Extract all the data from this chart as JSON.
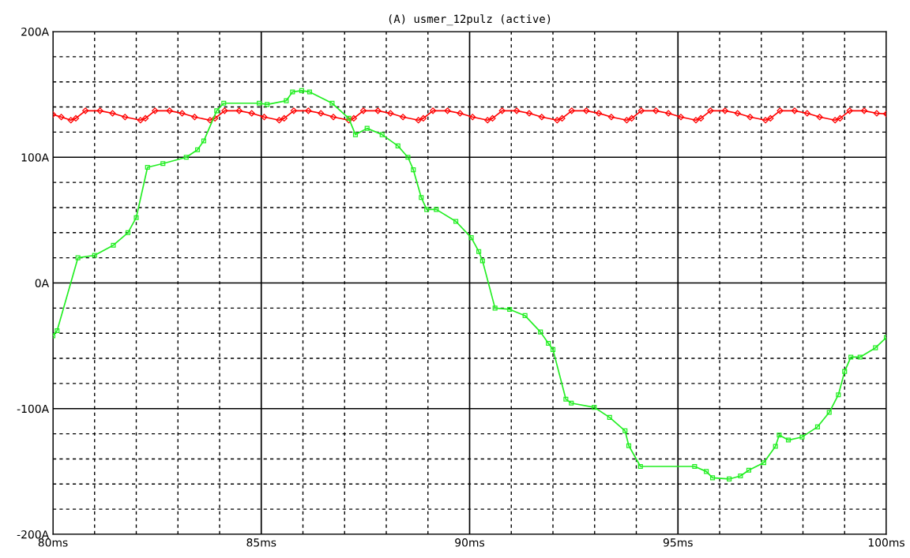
{
  "chart_data": {
    "type": "line",
    "title": "(A) usmer_12pulz (active)",
    "xlim": [
      80,
      100
    ],
    "xticks": [
      {
        "value": 80,
        "label": "80ms"
      },
      {
        "value": 81,
        "label": null
      },
      {
        "value": 82,
        "label": null
      },
      {
        "value": 83,
        "label": null
      },
      {
        "value": 84,
        "label": null
      },
      {
        "value": 85,
        "label": "85ms"
      },
      {
        "value": 86,
        "label": null
      },
      {
        "value": 87,
        "label": null
      },
      {
        "value": 88,
        "label": null
      },
      {
        "value": 89,
        "label": null
      },
      {
        "value": 90,
        "label": "90ms"
      },
      {
        "value": 91,
        "label": null
      },
      {
        "value": 92,
        "label": null
      },
      {
        "value": 93,
        "label": null
      },
      {
        "value": 94,
        "label": null
      },
      {
        "value": 95,
        "label": "95ms"
      },
      {
        "value": 96,
        "label": null
      },
      {
        "value": 97,
        "label": null
      },
      {
        "value": 98,
        "label": null
      },
      {
        "value": 99,
        "label": null
      },
      {
        "value": 100,
        "label": "100ms"
      }
    ],
    "ylim": [
      -200,
      200
    ],
    "yticks": [
      {
        "value": -200,
        "label": "-200A"
      },
      {
        "value": -180,
        "label": null
      },
      {
        "value": -160,
        "label": null
      },
      {
        "value": -140,
        "label": null
      },
      {
        "value": -120,
        "label": null
      },
      {
        "value": -100,
        "label": "-100A"
      },
      {
        "value": -80,
        "label": null
      },
      {
        "value": -60,
        "label": null
      },
      {
        "value": -40,
        "label": null
      },
      {
        "value": -20,
        "label": null
      },
      {
        "value": 0,
        "label": "0A"
      },
      {
        "value": 20,
        "label": null
      },
      {
        "value": 40,
        "label": null
      },
      {
        "value": 60,
        "label": null
      },
      {
        "value": 80,
        "label": null
      },
      {
        "value": 100,
        "label": "100A"
      },
      {
        "value": 120,
        "label": null
      },
      {
        "value": 140,
        "label": null
      },
      {
        "value": 160,
        "label": null
      },
      {
        "value": 180,
        "label": null
      },
      {
        "value": 200,
        "label": "200A"
      }
    ],
    "grid": true,
    "series": [
      {
        "color": "#ff0000",
        "marker": "diamond",
        "x": [
          80.0,
          80.2,
          80.43,
          80.55,
          80.78,
          81.13,
          81.43,
          81.73,
          82.1,
          82.22,
          82.45,
          82.8,
          83.1,
          83.4,
          83.77,
          83.89,
          84.12,
          84.47,
          84.77,
          85.07,
          85.43,
          85.55,
          85.78,
          86.13,
          86.43,
          86.73,
          87.1,
          87.22,
          87.45,
          87.8,
          88.1,
          88.4,
          88.77,
          88.89,
          89.12,
          89.47,
          89.77,
          90.07,
          90.43,
          90.55,
          90.78,
          91.13,
          91.43,
          91.73,
          92.1,
          92.22,
          92.45,
          92.8,
          93.1,
          93.4,
          93.77,
          93.89,
          94.12,
          94.47,
          94.77,
          95.07,
          95.43,
          95.55,
          95.78,
          96.13,
          96.43,
          96.73,
          97.1,
          97.22,
          97.45,
          97.8,
          98.1,
          98.4,
          98.77,
          98.89,
          99.12,
          99.47,
          99.77,
          100.0
        ],
        "values": [
          134,
          132,
          129.5,
          131,
          137,
          137,
          135,
          132,
          129.5,
          131,
          137,
          137,
          135,
          132,
          129.5,
          131,
          137,
          137,
          135,
          132,
          129.5,
          131,
          137,
          137,
          135,
          132,
          129.5,
          131,
          137,
          137,
          135,
          132,
          129.5,
          131,
          137,
          137,
          135,
          132,
          129.5,
          131,
          137,
          137,
          135,
          132,
          129.5,
          131,
          137,
          137,
          135,
          132,
          129.5,
          131,
          137,
          137,
          135,
          132,
          129.5,
          131,
          137,
          137,
          135,
          132,
          129.5,
          131,
          137,
          137,
          135,
          132,
          129.5,
          131,
          137,
          137,
          135,
          134.5
        ]
      },
      {
        "color": "#22ee22",
        "marker": "square",
        "x": [
          80.0,
          80.1,
          80.6,
          81.0,
          81.45,
          81.8,
          82.0,
          82.27,
          82.64,
          83.2,
          83.47,
          83.62,
          83.93,
          84.1,
          84.95,
          85.14,
          85.6,
          85.75,
          85.97,
          86.16,
          86.7,
          87.1,
          87.26,
          87.54,
          87.9,
          88.28,
          88.52,
          88.65,
          88.84,
          88.97,
          89.2,
          89.67,
          90.04,
          90.22,
          90.31,
          90.61,
          90.96,
          91.33,
          91.7,
          91.89,
          92.0,
          92.31,
          92.44,
          92.99,
          93.36,
          93.73,
          93.82,
          94.1,
          95.4,
          95.68,
          95.83,
          96.23,
          96.5,
          96.7,
          97.06,
          97.34,
          97.43,
          97.65,
          97.98,
          98.35,
          98.63,
          98.85,
          99.0,
          99.15,
          99.37,
          99.74,
          100.0
        ],
        "values": [
          -42,
          -38,
          20,
          22,
          30,
          40,
          52,
          92,
          95,
          100,
          106,
          113,
          137,
          143,
          143,
          142,
          145,
          152,
          153,
          152,
          143,
          131,
          118,
          123,
          118,
          109,
          100,
          90,
          68,
          58.5,
          58.5,
          49,
          36,
          25,
          17.6,
          -20,
          -21,
          -26,
          -39,
          -48,
          -53,
          -92.5,
          -95.6,
          -99,
          -107,
          -117.6,
          -129.5,
          -146,
          -146,
          -150,
          -155,
          -156,
          -153.5,
          -149,
          -143,
          -130,
          -121,
          -125,
          -122.6,
          -114.5,
          -103,
          -89,
          -70.4,
          -59,
          -59,
          -51.6,
          -43.4
        ]
      }
    ]
  }
}
